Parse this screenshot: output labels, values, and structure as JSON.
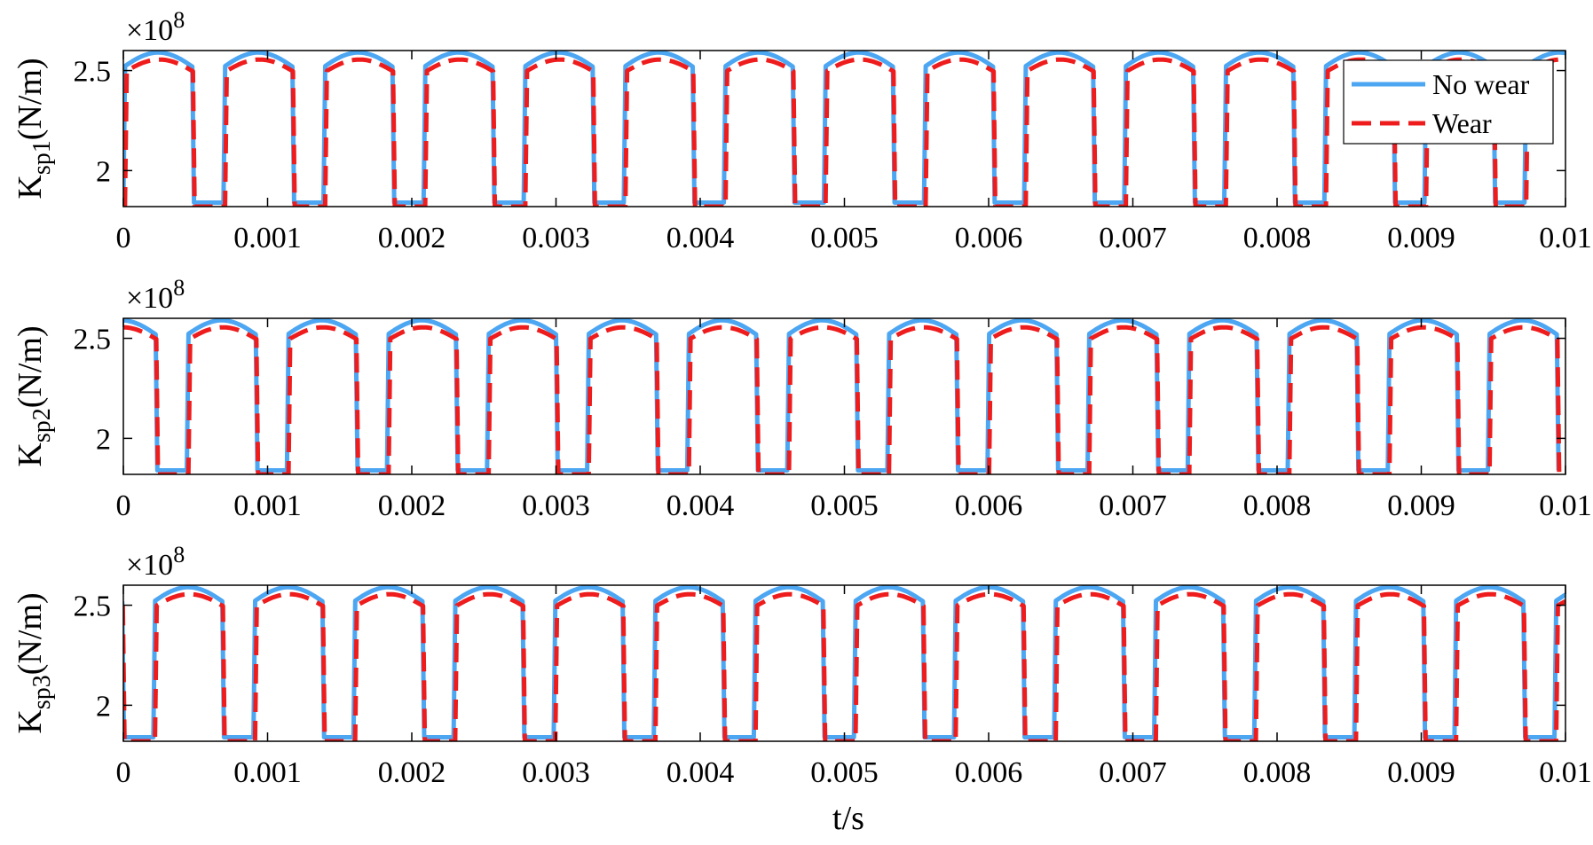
{
  "colors": {
    "no_wear": "#4da6f2",
    "wear": "#ee1c1c",
    "axes": "#000000",
    "background": "#ffffff"
  },
  "legend": {
    "placement": "top-right",
    "entries": [
      {
        "label": "No wear",
        "style": "solid",
        "color": "#4da6f2"
      },
      {
        "label": "Wear",
        "style": "dashed",
        "color": "#ee1c1c"
      }
    ]
  },
  "xlabel": "t/s",
  "chart_data": [
    {
      "type": "line",
      "panel": 1,
      "ylabel_main": "K",
      "ylabel_sub": "sp1",
      "ylabel_unit": "(N/m)",
      "y_exponent_text": "×10",
      "y_exponent_power": "8",
      "xlim": [
        0,
        0.01
      ],
      "ylim": [
        1.82,
        2.6
      ],
      "x_ticks": [
        0,
        0.001,
        0.002,
        0.003,
        0.004,
        0.005,
        0.006,
        0.007,
        0.008,
        0.009,
        0.01
      ],
      "x_tick_labels": [
        "0",
        "0.001",
        "0.002",
        "0.003",
        "0.004",
        "0.005",
        "0.006",
        "0.007",
        "0.008",
        "0.009",
        "0.01"
      ],
      "y_ticks": [
        2,
        2.5
      ],
      "y_tick_labels": [
        "2",
        "2.5"
      ],
      "mesh_period": 0.000694,
      "single_pair_start": 0.000486,
      "single_pair_end": 0.000694,
      "grid": false,
      "series": [
        {
          "name": "No wear",
          "high_min": 2.5,
          "high_max": 2.59,
          "low": 1.84
        },
        {
          "name": "Wear",
          "high_min": 2.48,
          "high_max": 2.555,
          "low": 1.82
        }
      ],
      "show_legend": true
    },
    {
      "type": "line",
      "panel": 2,
      "ylabel_main": "K",
      "ylabel_sub": "sp2",
      "ylabel_unit": "(N/m)",
      "y_exponent_text": "×10",
      "y_exponent_power": "8",
      "xlim": [
        0,
        0.01
      ],
      "ylim": [
        1.82,
        2.6
      ],
      "x_ticks": [
        0,
        0.001,
        0.002,
        0.003,
        0.004,
        0.005,
        0.006,
        0.007,
        0.008,
        0.009,
        0.01
      ],
      "x_tick_labels": [
        "0",
        "0.001",
        "0.002",
        "0.003",
        "0.004",
        "0.005",
        "0.006",
        "0.007",
        "0.008",
        "0.009",
        "0.01"
      ],
      "y_ticks": [
        2,
        2.5
      ],
      "y_tick_labels": [
        "2",
        "2.5"
      ],
      "mesh_period": 0.000694,
      "single_pair_start": 0.000232,
      "single_pair_end": 0.00044,
      "grid": false,
      "series": [
        {
          "name": "No wear",
          "high_min": 2.5,
          "high_max": 2.59,
          "low": 1.84
        },
        {
          "name": "Wear",
          "high_min": 2.48,
          "high_max": 2.555,
          "low": 1.82
        }
      ],
      "show_legend": false
    },
    {
      "type": "line",
      "panel": 3,
      "ylabel_main": "K",
      "ylabel_sub": "sp3",
      "ylabel_unit": "(N/m)",
      "y_exponent_text": "×10",
      "y_exponent_power": "8",
      "xlim": [
        0,
        0.01
      ],
      "ylim": [
        1.82,
        2.6
      ],
      "x_ticks": [
        0,
        0.001,
        0.002,
        0.003,
        0.004,
        0.005,
        0.006,
        0.007,
        0.008,
        0.009,
        0.01
      ],
      "x_tick_labels": [
        "0",
        "0.001",
        "0.002",
        "0.003",
        "0.004",
        "0.005",
        "0.006",
        "0.007",
        "0.008",
        "0.009",
        "0.01"
      ],
      "y_ticks": [
        2,
        2.5
      ],
      "y_tick_labels": [
        "2",
        "2.5"
      ],
      "mesh_period": 0.000694,
      "single_pair_start": 0.0,
      "single_pair_end": 0.000208,
      "grid": false,
      "series": [
        {
          "name": "No wear",
          "high_min": 2.5,
          "high_max": 2.59,
          "low": 1.84
        },
        {
          "name": "Wear",
          "high_min": 2.48,
          "high_max": 2.555,
          "low": 1.82
        }
      ],
      "show_legend": false
    }
  ]
}
